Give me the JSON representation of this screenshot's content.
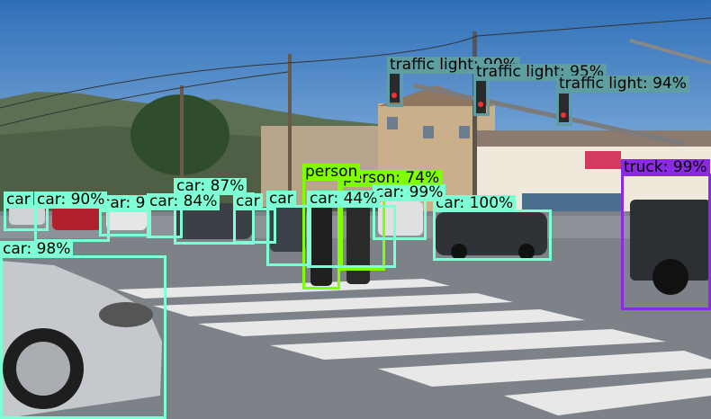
{
  "scene": "street-intersection-object-detection",
  "colors": {
    "car": "#7fffd4",
    "person": "#7fff00",
    "traffic_light": "#5f9ea0",
    "truck": "#8a2be2"
  },
  "detections": [
    {
      "label": "traffic light: 90%",
      "cls": "traffic_light"
    },
    {
      "label": "traffic light: 95%",
      "cls": "traffic_light"
    },
    {
      "label": "traffic light: 94%",
      "cls": "traffic_light"
    },
    {
      "label": "truck: 99%",
      "cls": "truck"
    },
    {
      "label": "person: 74%",
      "cls": "person"
    },
    {
      "label": "person",
      "cls": "person"
    },
    {
      "label": "car: 100%",
      "cls": "car"
    },
    {
      "label": "car: 99%",
      "cls": "car"
    },
    {
      "label": "car: 44%",
      "cls": "car"
    },
    {
      "label": "car",
      "cls": "car"
    },
    {
      "label": "car",
      "cls": "car"
    },
    {
      "label": "car: 87%",
      "cls": "car"
    },
    {
      "label": "car: 84%",
      "cls": "car"
    },
    {
      "label": "car: 9",
      "cls": "car"
    },
    {
      "label": "car: 90%",
      "cls": "car"
    },
    {
      "label": "car",
      "cls": "car"
    },
    {
      "label": "car: 98%",
      "cls": "car"
    }
  ]
}
